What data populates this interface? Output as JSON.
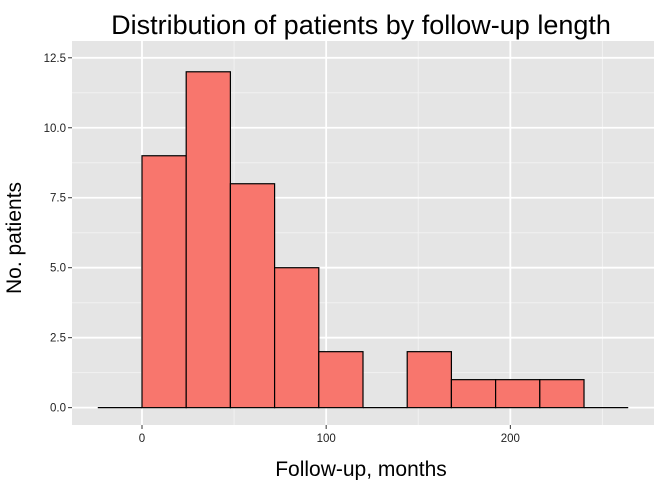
{
  "chart_data": {
    "type": "bar",
    "title": "Distribution of patients by follow-up length",
    "xlabel": "Follow-up, months",
    "ylabel": "No. patients",
    "bin_width": 24,
    "bins": [
      {
        "start": -24,
        "end": 0,
        "count": 0
      },
      {
        "start": 0,
        "end": 24,
        "count": 9
      },
      {
        "start": 24,
        "end": 48,
        "count": 12
      },
      {
        "start": 48,
        "end": 72,
        "count": 8
      },
      {
        "start": 72,
        "end": 96,
        "count": 5
      },
      {
        "start": 96,
        "end": 120,
        "count": 2
      },
      {
        "start": 120,
        "end": 144,
        "count": 0
      },
      {
        "start": 144,
        "end": 168,
        "count": 2
      },
      {
        "start": 168,
        "end": 192,
        "count": 1
      },
      {
        "start": 192,
        "end": 216,
        "count": 1
      },
      {
        "start": 216,
        "end": 240,
        "count": 1
      },
      {
        "start": 240,
        "end": 264,
        "count": 0
      }
    ],
    "xlim": [
      -38,
      278
    ],
    "ylim": [
      -0.62,
      13.1
    ],
    "x_ticks": [
      0,
      100,
      200
    ],
    "x_tick_labels": [
      "0",
      "100",
      "200"
    ],
    "y_ticks": [
      0,
      2.5,
      5,
      7.5,
      10,
      12.5
    ],
    "y_tick_labels": [
      "0.0",
      "2.5",
      "5.0",
      "7.5",
      "10.0",
      "12.5"
    ],
    "grid": true,
    "colors": {
      "panel_background": "#e5e5e5",
      "grid_major": "#ffffff",
      "grid_minor": "#f2f2f2",
      "bar_fill": "#f8766d",
      "bar_outline": "#000000"
    }
  }
}
